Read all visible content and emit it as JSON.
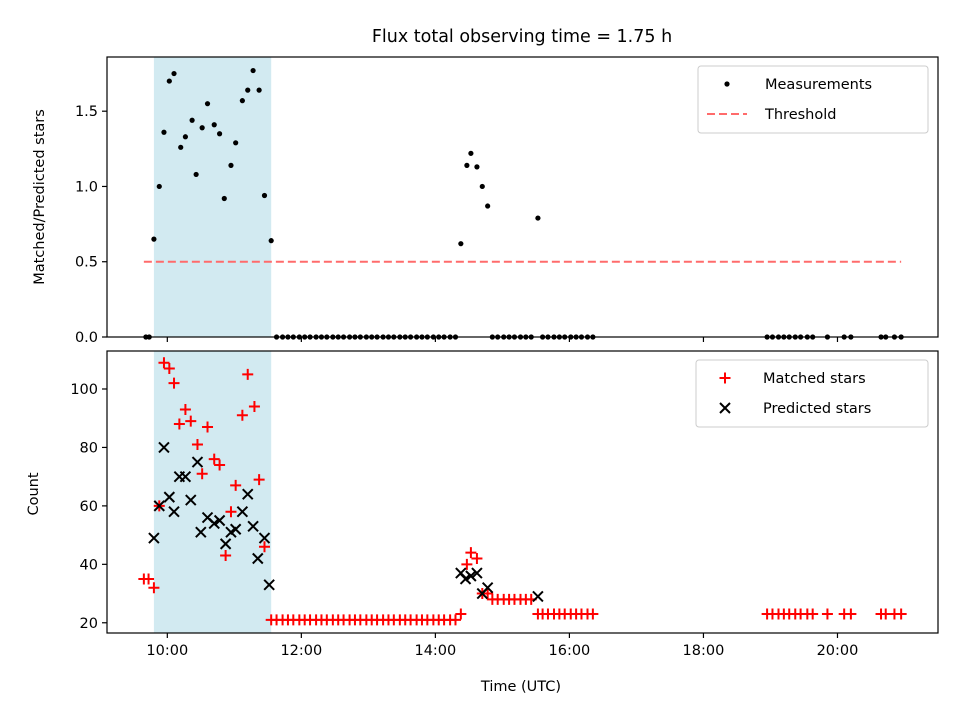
{
  "figure": {
    "title": "Flux total observing time = 1.75 h"
  },
  "colors": {
    "highlight": "#add8e6",
    "threshold": "#ff6b6b",
    "measurement": "#000000",
    "matched": "#ff0000",
    "predicted": "#000000",
    "axis": "#000000"
  },
  "chart_data": [
    {
      "type": "scatter",
      "id": "top",
      "ylabel": "Matched/Predicted stars",
      "xlabel": "",
      "xlim": [
        9.1,
        21.5
      ],
      "ylim": [
        0,
        1.86
      ],
      "yticks": [
        0.0,
        0.5,
        1.0,
        1.5
      ],
      "ytick_labels": [
        "0.0",
        "0.5",
        "1.0",
        "1.5"
      ],
      "xticks": [
        10,
        12,
        14,
        16,
        18,
        20
      ],
      "highlight_span": [
        9.8,
        11.55
      ],
      "threshold": {
        "value": 0.5,
        "x_range": [
          9.65,
          20.95
        ]
      },
      "legend": {
        "position": "top-right",
        "entries": [
          "Measurements",
          "Threshold"
        ]
      },
      "series": [
        {
          "name": "Measurements",
          "points": [
            [
              9.68,
              0
            ],
            [
              9.73,
              0
            ],
            [
              9.8,
              0.65
            ],
            [
              9.88,
              1.0
            ],
            [
              9.95,
              1.36
            ],
            [
              10.03,
              1.7
            ],
            [
              10.1,
              1.75
            ],
            [
              10.2,
              1.26
            ],
            [
              10.27,
              1.33
            ],
            [
              10.37,
              1.44
            ],
            [
              10.43,
              1.08
            ],
            [
              10.52,
              1.39
            ],
            [
              10.6,
              1.55
            ],
            [
              10.7,
              1.41
            ],
            [
              10.78,
              1.35
            ],
            [
              10.85,
              0.92
            ],
            [
              10.95,
              1.14
            ],
            [
              11.02,
              1.29
            ],
            [
              11.12,
              1.57
            ],
            [
              11.2,
              1.64
            ],
            [
              11.28,
              1.77
            ],
            [
              11.37,
              1.64
            ],
            [
              11.45,
              0.94
            ],
            [
              11.55,
              0.64
            ],
            [
              11.63,
              0
            ],
            [
              11.72,
              0
            ],
            [
              11.8,
              0
            ],
            [
              11.88,
              0
            ],
            [
              11.97,
              0
            ],
            [
              12.05,
              0
            ],
            [
              12.13,
              0
            ],
            [
              12.22,
              0
            ],
            [
              12.3,
              0
            ],
            [
              12.38,
              0
            ],
            [
              12.47,
              0
            ],
            [
              12.55,
              0
            ],
            [
              12.63,
              0
            ],
            [
              12.72,
              0
            ],
            [
              12.8,
              0
            ],
            [
              12.88,
              0
            ],
            [
              12.97,
              0
            ],
            [
              13.05,
              0
            ],
            [
              13.13,
              0
            ],
            [
              13.22,
              0
            ],
            [
              13.3,
              0
            ],
            [
              13.38,
              0
            ],
            [
              13.47,
              0
            ],
            [
              13.55,
              0
            ],
            [
              13.63,
              0
            ],
            [
              13.72,
              0
            ],
            [
              13.8,
              0
            ],
            [
              13.88,
              0
            ],
            [
              13.97,
              0
            ],
            [
              14.05,
              0
            ],
            [
              14.13,
              0
            ],
            [
              14.22,
              0
            ],
            [
              14.3,
              0
            ],
            [
              14.38,
              0.62
            ],
            [
              14.47,
              1.14
            ],
            [
              14.53,
              1.22
            ],
            [
              14.62,
              1.13
            ],
            [
              14.7,
              1.0
            ],
            [
              14.78,
              0.87
            ],
            [
              14.85,
              0
            ],
            [
              14.93,
              0
            ],
            [
              15.02,
              0
            ],
            [
              15.1,
              0
            ],
            [
              15.18,
              0
            ],
            [
              15.27,
              0
            ],
            [
              15.35,
              0
            ],
            [
              15.43,
              0
            ],
            [
              15.53,
              0.79
            ],
            [
              15.6,
              0
            ],
            [
              15.68,
              0
            ],
            [
              15.77,
              0
            ],
            [
              15.85,
              0
            ],
            [
              15.93,
              0
            ],
            [
              16.02,
              0
            ],
            [
              16.1,
              0
            ],
            [
              16.18,
              0
            ],
            [
              16.27,
              0
            ],
            [
              16.35,
              0
            ],
            [
              18.95,
              0
            ],
            [
              19.03,
              0
            ],
            [
              19.12,
              0
            ],
            [
              19.2,
              0
            ],
            [
              19.28,
              0
            ],
            [
              19.37,
              0
            ],
            [
              19.45,
              0
            ],
            [
              19.55,
              0
            ],
            [
              19.63,
              0
            ],
            [
              19.85,
              0
            ],
            [
              20.1,
              0
            ],
            [
              20.2,
              0
            ],
            [
              20.65,
              0
            ],
            [
              20.72,
              0
            ],
            [
              20.85,
              0
            ],
            [
              20.95,
              0
            ]
          ]
        }
      ]
    },
    {
      "type": "scatter",
      "id": "bottom",
      "ylabel": "Count",
      "xlabel": "Time (UTC)",
      "xlim": [
        9.1,
        21.5
      ],
      "ylim": [
        16.5,
        113
      ],
      "yticks": [
        20,
        40,
        60,
        80,
        100
      ],
      "ytick_labels": [
        "20",
        "40",
        "60",
        "80",
        "100"
      ],
      "xticks": [
        10,
        12,
        14,
        16,
        18,
        20
      ],
      "xtick_labels": [
        "10:00",
        "12:00",
        "14:00",
        "16:00",
        "18:00",
        "20:00"
      ],
      "highlight_span": [
        9.8,
        11.55
      ],
      "legend": {
        "position": "top-right",
        "entries": [
          "Matched stars",
          "Predicted stars"
        ]
      },
      "series": [
        {
          "name": "Matched stars",
          "marker": "plus",
          "points": [
            [
              9.65,
              35
            ],
            [
              9.72,
              35
            ],
            [
              9.8,
              32
            ],
            [
              9.88,
              60
            ],
            [
              9.95,
              109
            ],
            [
              10.03,
              107
            ],
            [
              10.1,
              102
            ],
            [
              10.18,
              88
            ],
            [
              10.27,
              93
            ],
            [
              10.35,
              89
            ],
            [
              10.45,
              81
            ],
            [
              10.52,
              71
            ],
            [
              10.6,
              87
            ],
            [
              10.7,
              76
            ],
            [
              10.78,
              74
            ],
            [
              10.87,
              43
            ],
            [
              10.95,
              58
            ],
            [
              11.02,
              67
            ],
            [
              11.12,
              91
            ],
            [
              11.2,
              105
            ],
            [
              11.3,
              94
            ],
            [
              11.37,
              69
            ],
            [
              11.45,
              46
            ],
            [
              11.55,
              21
            ],
            [
              11.63,
              21
            ],
            [
              11.72,
              21
            ],
            [
              11.8,
              21
            ],
            [
              11.88,
              21
            ],
            [
              11.97,
              21
            ],
            [
              12.05,
              21
            ],
            [
              12.13,
              21
            ],
            [
              12.22,
              21
            ],
            [
              12.3,
              21
            ],
            [
              12.38,
              21
            ],
            [
              12.47,
              21
            ],
            [
              12.55,
              21
            ],
            [
              12.63,
              21
            ],
            [
              12.72,
              21
            ],
            [
              12.8,
              21
            ],
            [
              12.88,
              21
            ],
            [
              12.97,
              21
            ],
            [
              13.05,
              21
            ],
            [
              13.13,
              21
            ],
            [
              13.22,
              21
            ],
            [
              13.3,
              21
            ],
            [
              13.38,
              21
            ],
            [
              13.47,
              21
            ],
            [
              13.55,
              21
            ],
            [
              13.63,
              21
            ],
            [
              13.72,
              21
            ],
            [
              13.8,
              21
            ],
            [
              13.88,
              21
            ],
            [
              13.97,
              21
            ],
            [
              14.05,
              21
            ],
            [
              14.13,
              21
            ],
            [
              14.22,
              21
            ],
            [
              14.3,
              21
            ],
            [
              14.38,
              23
            ],
            [
              14.47,
              40
            ],
            [
              14.53,
              44
            ],
            [
              14.62,
              42
            ],
            [
              14.7,
              30
            ],
            [
              14.78,
              30
            ],
            [
              14.85,
              28
            ],
            [
              14.93,
              28
            ],
            [
              15.02,
              28
            ],
            [
              15.1,
              28
            ],
            [
              15.18,
              28
            ],
            [
              15.27,
              28
            ],
            [
              15.35,
              28
            ],
            [
              15.43,
              28
            ],
            [
              15.53,
              23
            ],
            [
              15.6,
              23
            ],
            [
              15.68,
              23
            ],
            [
              15.77,
              23
            ],
            [
              15.85,
              23
            ],
            [
              15.93,
              23
            ],
            [
              16.02,
              23
            ],
            [
              16.1,
              23
            ],
            [
              16.18,
              23
            ],
            [
              16.27,
              23
            ],
            [
              16.35,
              23
            ],
            [
              18.95,
              23
            ],
            [
              19.03,
              23
            ],
            [
              19.12,
              23
            ],
            [
              19.2,
              23
            ],
            [
              19.28,
              23
            ],
            [
              19.37,
              23
            ],
            [
              19.45,
              23
            ],
            [
              19.55,
              23
            ],
            [
              19.63,
              23
            ],
            [
              19.85,
              23
            ],
            [
              20.1,
              23
            ],
            [
              20.2,
              23
            ],
            [
              20.65,
              23
            ],
            [
              20.72,
              23
            ],
            [
              20.85,
              23
            ],
            [
              20.95,
              23
            ]
          ]
        },
        {
          "name": "Predicted stars",
          "marker": "x",
          "points": [
            [
              9.8,
              49
            ],
            [
              9.88,
              60
            ],
            [
              9.95,
              80
            ],
            [
              10.03,
              63
            ],
            [
              10.1,
              58
            ],
            [
              10.18,
              70
            ],
            [
              10.27,
              70
            ],
            [
              10.35,
              62
            ],
            [
              10.45,
              75
            ],
            [
              10.5,
              51
            ],
            [
              10.6,
              56
            ],
            [
              10.7,
              54
            ],
            [
              10.78,
              55
            ],
            [
              10.87,
              47
            ],
            [
              10.95,
              51
            ],
            [
              11.02,
              52
            ],
            [
              11.12,
              58
            ],
            [
              11.2,
              64
            ],
            [
              11.28,
              53
            ],
            [
              11.35,
              42
            ],
            [
              11.45,
              49
            ],
            [
              11.52,
              33
            ],
            [
              14.38,
              37
            ],
            [
              14.45,
              35
            ],
            [
              14.53,
              36
            ],
            [
              14.62,
              37
            ],
            [
              14.7,
              30
            ],
            [
              14.78,
              32
            ],
            [
              15.53,
              29
            ]
          ]
        }
      ]
    }
  ]
}
